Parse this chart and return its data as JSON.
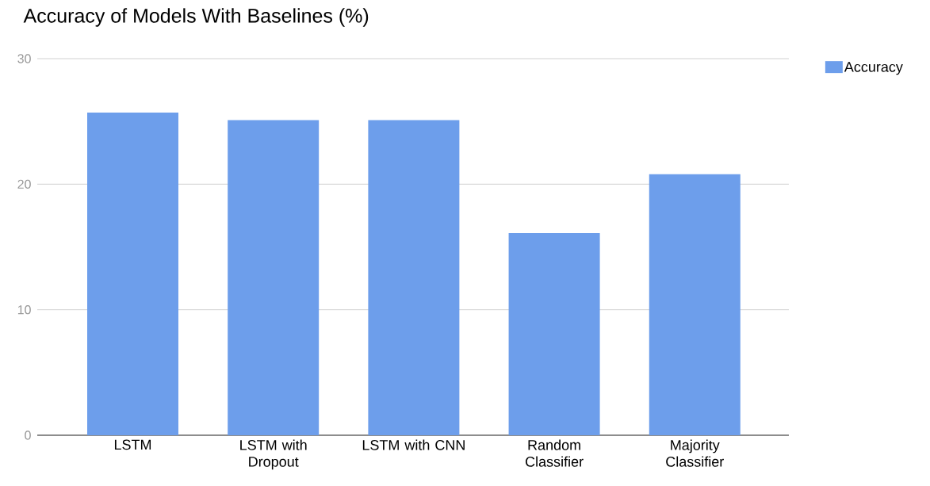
{
  "chart_data": {
    "type": "bar",
    "title": "Accuracy of Models With Baselines (%)",
    "categories": [
      "LSTM",
      "LSTM with Dropout",
      "LSTM with CNN",
      "Random Classifier",
      "Majority Classifier"
    ],
    "series": [
      {
        "name": "Accuracy",
        "color": "#6d9eeb",
        "values": [
          25.7,
          25.1,
          25.1,
          16.1,
          20.8
        ]
      }
    ],
    "ylim": [
      0,
      30
    ],
    "yticks": [
      0,
      10,
      20,
      30
    ],
    "grid": "y",
    "legend": "top right"
  }
}
